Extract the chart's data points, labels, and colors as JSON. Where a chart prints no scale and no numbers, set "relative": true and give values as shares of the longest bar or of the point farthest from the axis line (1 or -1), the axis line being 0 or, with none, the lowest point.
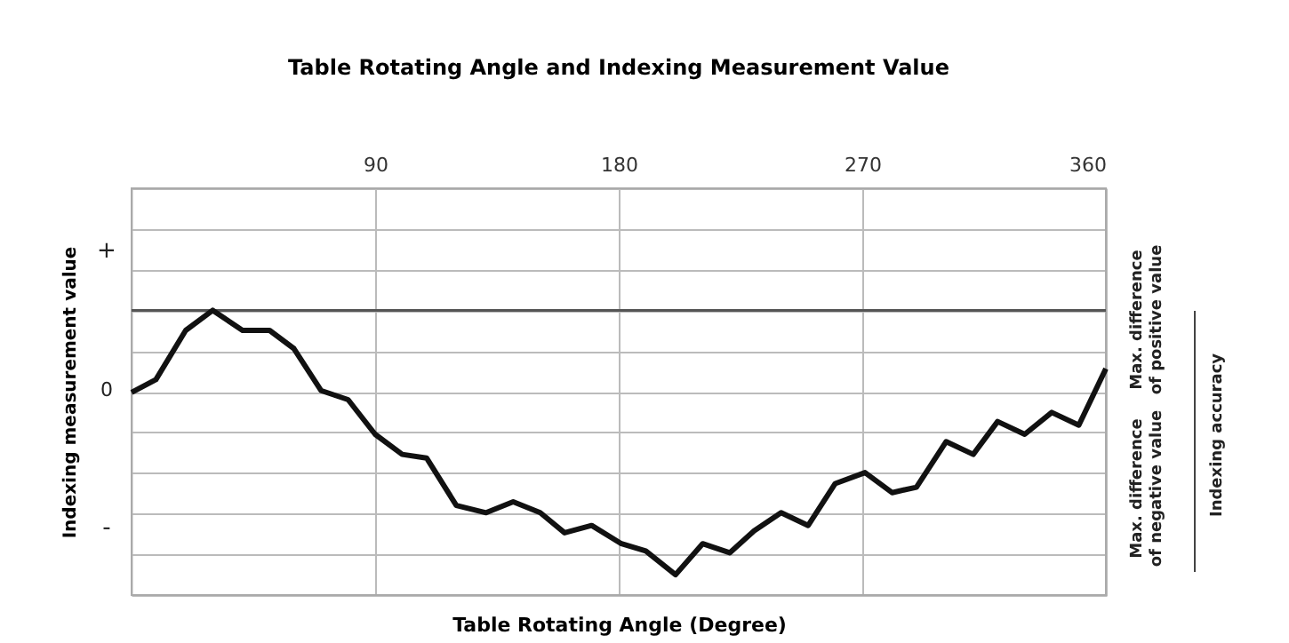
{
  "chart_data": {
    "type": "line",
    "title": "Table Rotating Angle and Indexing Measurement Value",
    "xlabel": "Table Rotating Angle (Degree)",
    "ylabel": "Indexing measurement value",
    "relative": true,
    "x": [
      0,
      9,
      20,
      30,
      41,
      51,
      60,
      70,
      80,
      90,
      100,
      109,
      120,
      131,
      141,
      151,
      160,
      170,
      181,
      190,
      201,
      211,
      221,
      230,
      240,
      250,
      260,
      271,
      281,
      290,
      301,
      311,
      320,
      330,
      340,
      350,
      360
    ],
    "series": [
      {
        "color": "#111111",
        "values": [
          0,
          0.07,
          0.34,
          0.45,
          0.34,
          0.34,
          0.24,
          0.01,
          -0.04,
          -0.23,
          -0.34,
          -0.36,
          -0.62,
          -0.66,
          -0.6,
          -0.66,
          -0.77,
          -0.73,
          -0.83,
          -0.87,
          -1,
          -0.83,
          -0.88,
          -0.76,
          -0.66,
          -0.73,
          -0.5,
          -0.44,
          -0.55,
          -0.52,
          -0.27,
          -0.34,
          -0.16,
          -0.23,
          -0.11,
          -0.18,
          0.13
        ]
      }
    ],
    "xlim": [
      0,
      360
    ],
    "xticks": [
      90,
      180,
      270,
      360
    ],
    "ref_lines": [
      {
        "axis": "y",
        "value": 0.45,
        "color": "#555555"
      }
    ],
    "annotations": [
      "+",
      "0",
      "-",
      "Max. difference\nof positive value",
      "Max. difference\nof negative value",
      "Indexing accuracy"
    ],
    "grid": true,
    "marker": "none",
    "line_style": "solid"
  }
}
